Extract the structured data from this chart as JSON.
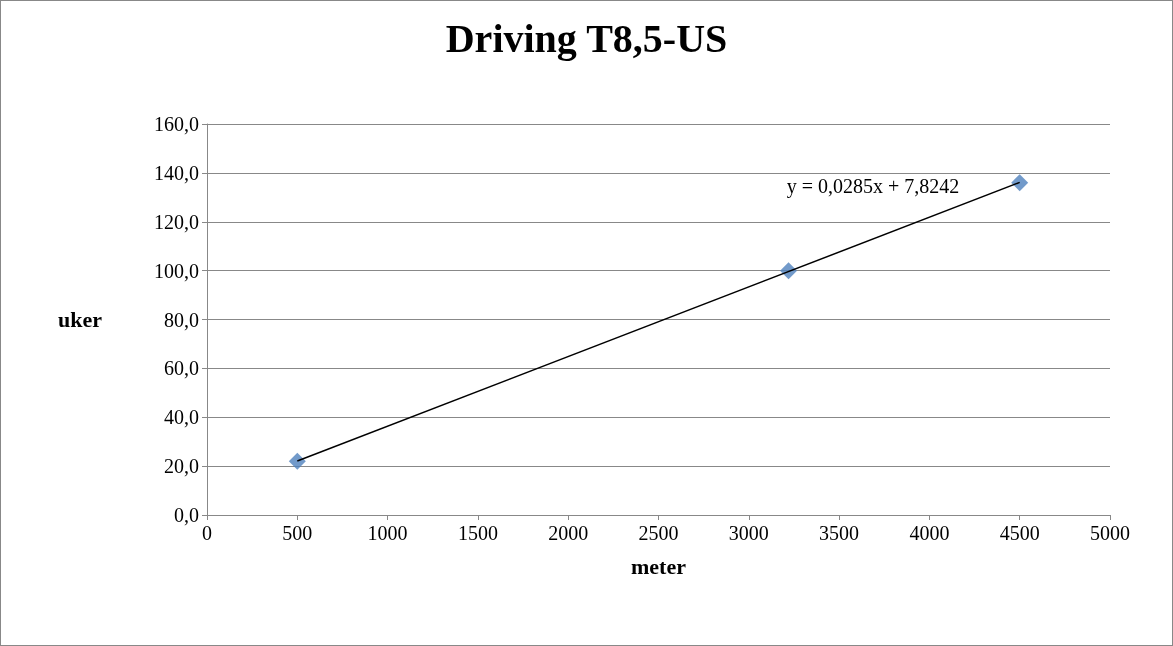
{
  "chart_data": {
    "type": "scatter",
    "title": "Driving T8,5-US",
    "xlabel": "meter",
    "ylabel": "uker",
    "xlim": [
      0,
      5000
    ],
    "xticks": [
      0,
      500,
      1000,
      1500,
      2000,
      2500,
      3000,
      3500,
      4000,
      4500,
      5000
    ],
    "ylim": [
      0,
      160
    ],
    "yticks": [
      {
        "value": 0,
        "label": "0,0"
      },
      {
        "value": 20,
        "label": "20,0"
      },
      {
        "value": 40,
        "label": "40,0"
      },
      {
        "value": 60,
        "label": "60,0"
      },
      {
        "value": 80,
        "label": "80,0"
      },
      {
        "value": 100,
        "label": "100,0"
      },
      {
        "value": 120,
        "label": "120,0"
      },
      {
        "value": 140,
        "label": "140,0"
      },
      {
        "value": 160,
        "label": "160,0"
      }
    ],
    "grid": "y",
    "marker": "diamond",
    "series": [
      {
        "color": "#4f81bd",
        "x": [
          500,
          3220,
          4500
        ],
        "values": [
          22,
          100,
          136
        ]
      },
      {
        "type": "line",
        "color": "#000000",
        "marker": "none",
        "line_style": "solid",
        "x": [
          500,
          4500
        ],
        "values": [
          22.1,
          136.1
        ]
      }
    ],
    "annotations": [
      "y = 0,0285x + 7,8242"
    ]
  }
}
